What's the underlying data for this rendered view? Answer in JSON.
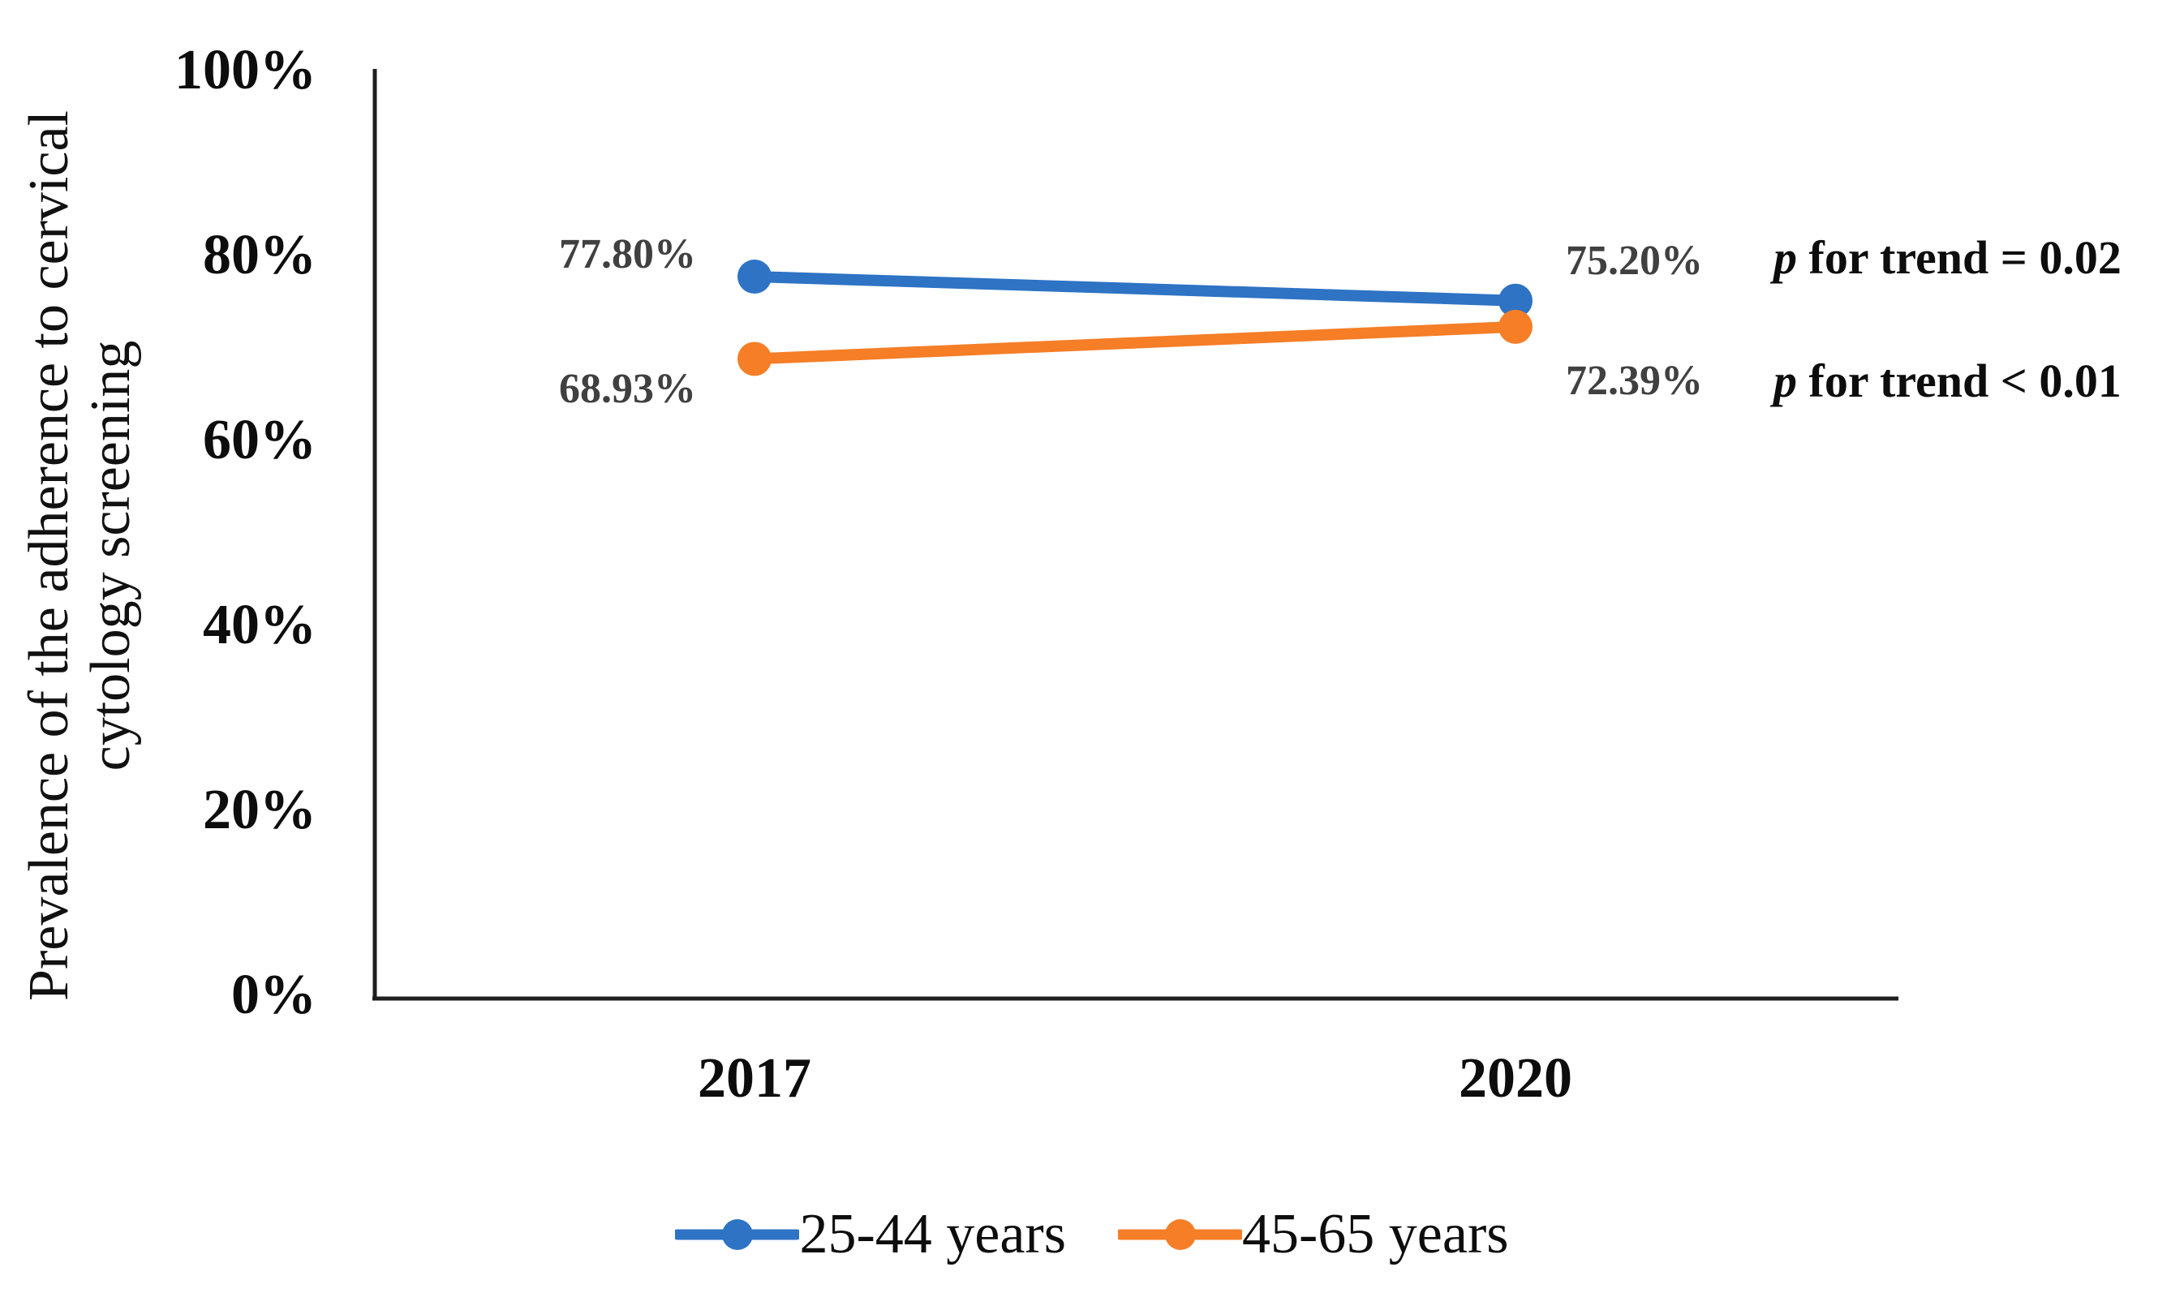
{
  "chart_data": {
    "type": "line",
    "title": "",
    "categories": [
      "2017",
      "2020"
    ],
    "series": [
      {
        "name": "25-44 years",
        "values": [
          77.8,
          75.2
        ],
        "labels": [
          "77.80%",
          "75.20%"
        ],
        "color": "#2E73C4"
      },
      {
        "name": "45-65 years",
        "values": [
          68.93,
          72.39
        ],
        "labels": [
          "68.93%",
          "72.39%"
        ],
        "color": "#F57E27"
      }
    ],
    "ylabel": "Prevalence of the adherence to cervical cytology screening",
    "ylabel_lines": [
      "Prevalence of the adherence to cervical",
      "cytology screening"
    ],
    "xlabel": "",
    "ylim": [
      0,
      100
    ],
    "yticks": [
      "100%",
      "80%",
      "60%",
      "40%",
      "20%",
      "0%"
    ],
    "ytick_values": [
      100,
      80,
      60,
      40,
      20,
      0
    ],
    "grid": "off",
    "legend_position": "bottom",
    "annotations": [
      {
        "italic": "p",
        "text": " for trend = 0.02"
      },
      {
        "italic": "p",
        "text": " for trend < 0.01"
      }
    ],
    "data_label_color": "#404040",
    "axis_color": "#1F1F1F"
  }
}
